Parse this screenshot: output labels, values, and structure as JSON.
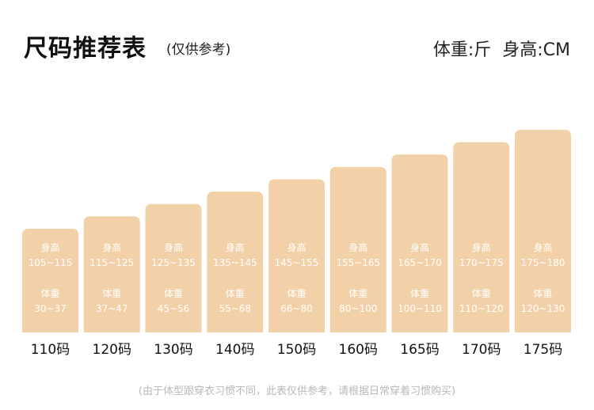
{
  "header": {
    "title": "尺码推荐表",
    "subtitle": "(仅供参考)",
    "unit_weight": "体重:斤",
    "unit_height": "身高:CM"
  },
  "footer": {
    "note": "(由于体型跟穿衣习惯不同，此表仅供参考，请根据日常穿着习惯购买)"
  },
  "colors": {
    "bar": "#f3d1a8",
    "bar_text": "#ffffff",
    "size_label": "#111111"
  },
  "chart_data": {
    "type": "bar",
    "categories": [
      "110码",
      "120码",
      "130码",
      "140码",
      "150码",
      "160码",
      "165码",
      "170码",
      "175码"
    ],
    "values": [
      1,
      2,
      3,
      4,
      5,
      6,
      7,
      8,
      9
    ],
    "height_label": "身高",
    "weight_label": "体重",
    "height_ranges": [
      "105~115",
      "115~125",
      "125~135",
      "135~145",
      "145~155",
      "155~165",
      "165~170",
      "170~175",
      "175~180"
    ],
    "weight_ranges": [
      "30~37",
      "37~47",
      "45~56",
      "55~68",
      "66~80",
      "80~100",
      "100~110",
      "110~120",
      "120~130"
    ]
  }
}
